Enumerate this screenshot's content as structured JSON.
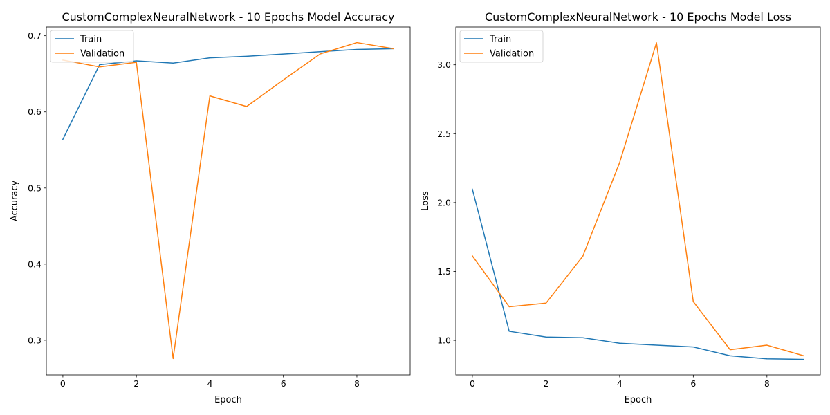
{
  "chart_data": [
    {
      "type": "line",
      "title": "CustomComplexNeuralNetwork - 10 Epochs Model Accuracy",
      "xlabel": "Epoch",
      "ylabel": "Accuracy",
      "xlim": [
        -0.45,
        9.45
      ],
      "ylim": [
        0.2545,
        0.7115
      ],
      "xticks": [
        0,
        2,
        4,
        6,
        8
      ],
      "yticks": [
        0.3,
        0.4,
        0.5,
        0.6,
        0.7
      ],
      "legend": "upper left",
      "x": [
        0,
        1,
        2,
        3,
        4,
        5,
        6,
        7,
        8,
        9
      ],
      "series": [
        {
          "name": "Train",
          "color": "#1f77b4",
          "values": [
            0.564,
            0.662,
            0.667,
            0.664,
            0.671,
            0.673,
            0.676,
            0.679,
            0.682,
            0.683
          ]
        },
        {
          "name": "Validation",
          "color": "#ff7f0e",
          "values": [
            0.668,
            0.659,
            0.665,
            0.276,
            0.621,
            0.607,
            0.642,
            0.676,
            0.691,
            0.683
          ]
        }
      ]
    },
    {
      "type": "line",
      "title": "CustomComplexNeuralNetwork - 10 Epochs Model Loss",
      "xlabel": "Epoch",
      "ylabel": "Loss",
      "xlim": [
        -0.45,
        9.45
      ],
      "ylim": [
        0.7494,
        3.2746
      ],
      "xticks": [
        0,
        2,
        4,
        6,
        8
      ],
      "yticks": [
        1.0,
        1.5,
        2.0,
        2.5,
        3.0
      ],
      "legend": "upper left",
      "x": [
        0,
        1,
        2,
        3,
        4,
        5,
        6,
        7,
        8,
        9
      ],
      "series": [
        {
          "name": "Train",
          "color": "#1f77b4",
          "values": [
            2.097,
            1.066,
            1.024,
            1.019,
            0.979,
            0.965,
            0.952,
            0.888,
            0.866,
            0.862
          ]
        },
        {
          "name": "Validation",
          "color": "#ff7f0e",
          "values": [
            1.613,
            1.244,
            1.27,
            1.611,
            2.291,
            3.16,
            1.281,
            0.932,
            0.965,
            0.888
          ]
        }
      ]
    }
  ]
}
